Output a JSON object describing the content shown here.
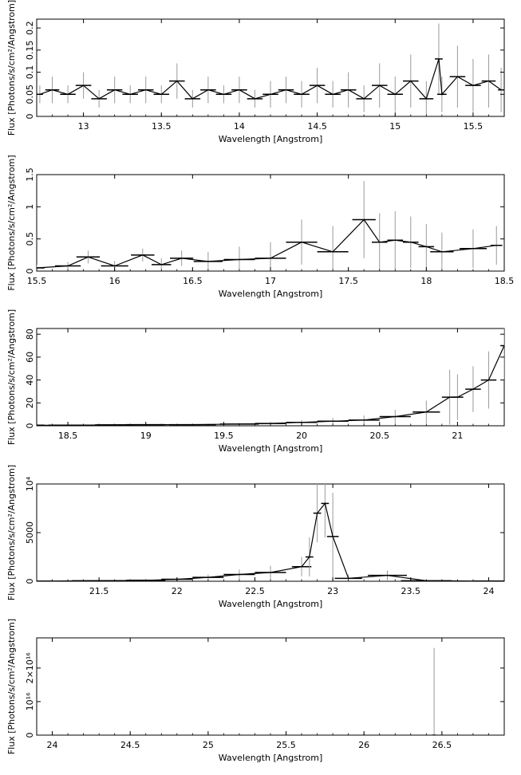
{
  "chart_data": [
    {
      "type": "line",
      "xlabel": "Wavelength [Angstrom]",
      "ylabel": "Flux [Photons/s/cm²/Angstrom]",
      "xlim": [
        12.7,
        15.7
      ],
      "ylim": [
        0,
        0.22
      ],
      "xticks": [
        13,
        13.5,
        14,
        14.5,
        15,
        15.5
      ],
      "xtick_labels": [
        "13",
        "13.5",
        "14",
        "14.5",
        "15",
        "15.5"
      ],
      "yticks": [
        0,
        0.05,
        0.1,
        0.15,
        0.2
      ],
      "ytick_labels": [
        "0",
        "0.05",
        "0.1",
        "0.15",
        "0.2"
      ],
      "series": [
        {
          "x": [
            12.72,
            12.8,
            12.9,
            13.0,
            13.1,
            13.2,
            13.3,
            13.4,
            13.5,
            13.6,
            13.7,
            13.8,
            13.9,
            14.0,
            14.1,
            14.2,
            14.3,
            14.4,
            14.5,
            14.6,
            14.7,
            14.8,
            14.9,
            15.0,
            15.1,
            15.2,
            15.28,
            15.3,
            15.4,
            15.5,
            15.6,
            15.68
          ],
          "y": [
            0.05,
            0.06,
            0.05,
            0.07,
            0.04,
            0.06,
            0.05,
            0.06,
            0.05,
            0.08,
            0.04,
            0.06,
            0.05,
            0.06,
            0.04,
            0.05,
            0.06,
            0.05,
            0.07,
            0.05,
            0.06,
            0.04,
            0.07,
            0.05,
            0.08,
            0.04,
            0.13,
            0.05,
            0.09,
            0.07,
            0.08,
            0.06
          ],
          "err": [
            0.02,
            0.03,
            0.02,
            0.03,
            0.02,
            0.03,
            0.02,
            0.03,
            0.02,
            0.04,
            0.02,
            0.03,
            0.02,
            0.03,
            0.02,
            0.03,
            0.03,
            0.03,
            0.04,
            0.03,
            0.04,
            0.03,
            0.05,
            0.04,
            0.06,
            0.04,
            0.08,
            0.04,
            0.07,
            0.06,
            0.06,
            0.05
          ]
        }
      ]
    },
    {
      "type": "line",
      "xlabel": "Wavelength [Angstrom]",
      "ylabel": "Flux [Photons/s/cm²/Angstrom]",
      "xlim": [
        15.5,
        18.5
      ],
      "ylim": [
        0,
        1.5
      ],
      "xticks": [
        15.5,
        16,
        16.5,
        17,
        17.5,
        18,
        18.5
      ],
      "xtick_labels": [
        "15.5",
        "16",
        "16.5",
        "17",
        "17.5",
        "18",
        "18.5"
      ],
      "yticks": [
        0,
        0.5,
        1,
        1.5
      ],
      "ytick_labels": [
        "0",
        "0.5",
        "1",
        "1.5"
      ],
      "series": [
        {
          "x": [
            15.5,
            15.7,
            15.83,
            16.0,
            16.18,
            16.3,
            16.43,
            16.6,
            16.8,
            17.0,
            17.2,
            17.4,
            17.6,
            17.7,
            17.8,
            17.9,
            18.0,
            18.1,
            18.3,
            18.45
          ],
          "y": [
            0.05,
            0.08,
            0.22,
            0.08,
            0.25,
            0.1,
            0.2,
            0.15,
            0.18,
            0.2,
            0.45,
            0.3,
            0.8,
            0.45,
            0.48,
            0.45,
            0.38,
            0.3,
            0.35,
            0.4
          ],
          "err": [
            0.05,
            0.06,
            0.1,
            0.08,
            0.1,
            0.1,
            0.12,
            0.15,
            0.2,
            0.25,
            0.35,
            0.4,
            0.6,
            0.45,
            0.45,
            0.4,
            0.35,
            0.3,
            0.3,
            0.3
          ]
        }
      ]
    },
    {
      "type": "line",
      "xlabel": "Wavelength [Angstrom]",
      "ylabel": "Flux [Photons/s/cm²/Angstrom]",
      "xlim": [
        18.3,
        21.3
      ],
      "ylim": [
        0,
        85
      ],
      "xticks": [
        18.5,
        19,
        19.5,
        20,
        20.5,
        21
      ],
      "xtick_labels": [
        "18.5",
        "19",
        "19.5",
        "20",
        "20.5",
        "21"
      ],
      "yticks": [
        0,
        20,
        40,
        60,
        80
      ],
      "ytick_labels": [
        "0",
        "20",
        "40",
        "60",
        "80"
      ],
      "series": [
        {
          "x": [
            18.3,
            18.5,
            18.8,
            19.0,
            19.3,
            19.6,
            19.8,
            20.0,
            20.2,
            20.4,
            20.6,
            20.8,
            20.95,
            21.0,
            21.1,
            21.2,
            21.3
          ],
          "y": [
            0.5,
            0.5,
            0.8,
            1,
            1,
            1.5,
            2,
            3,
            4,
            5,
            8,
            12,
            25,
            25,
            32,
            40,
            70
          ],
          "err": [
            0.3,
            0.4,
            0.5,
            0.6,
            0.8,
            1,
            1.5,
            2,
            3,
            4,
            6,
            10,
            24,
            20,
            20,
            25,
            30
          ]
        }
      ]
    },
    {
      "type": "line",
      "xlabel": "Wavelength [Angstrom]",
      "ylabel": "Flux [Photons/s/cm²/Angstrom]",
      "xlim": [
        21.1,
        24.1
      ],
      "ylim": [
        0,
        10000
      ],
      "xticks": [
        21.5,
        22,
        22.5,
        23,
        23.5,
        24
      ],
      "xtick_labels": [
        "21.5",
        "22",
        "22.5",
        "23",
        "23.5",
        "24"
      ],
      "yticks": [
        0,
        5000,
        10000
      ],
      "ytick_labels": [
        "0",
        "5000",
        "10⁴"
      ],
      "series": [
        {
          "x": [
            21.1,
            21.5,
            21.8,
            22.0,
            22.2,
            22.4,
            22.6,
            22.8,
            22.85,
            22.9,
            22.95,
            23.0,
            23.1,
            23.35,
            23.6,
            24.0
          ],
          "y": [
            10,
            50,
            100,
            200,
            400,
            700,
            900,
            1500,
            2500,
            7000,
            8000,
            4600,
            300,
            600,
            50,
            20
          ],
          "err": [
            10,
            40,
            80,
            150,
            300,
            500,
            700,
            1000,
            2000,
            3000,
            3500,
            4500,
            400,
            500,
            40,
            20
          ]
        }
      ]
    },
    {
      "type": "line",
      "xlabel": "Wavelength [Angstrom]",
      "ylabel": "Flux [Photons/s/cm²/Angstrom]",
      "xlim": [
        23.9,
        26.9
      ],
      "ylim": [
        0,
        2.9e+16
      ],
      "xticks": [
        24,
        24.5,
        25,
        25.5,
        26,
        26.5
      ],
      "xtick_labels": [
        "24",
        "24.5",
        "25",
        "25.5",
        "26",
        "26.5"
      ],
      "yticks": [
        0,
        1e+16,
        2e+16
      ],
      "ytick_labels": [
        "0",
        "10¹⁶",
        "2×10¹⁶"
      ],
      "series": [
        {
          "x": [
            26.45
          ],
          "y": [
            0
          ],
          "err": [
            2.6e+16
          ]
        }
      ]
    }
  ]
}
